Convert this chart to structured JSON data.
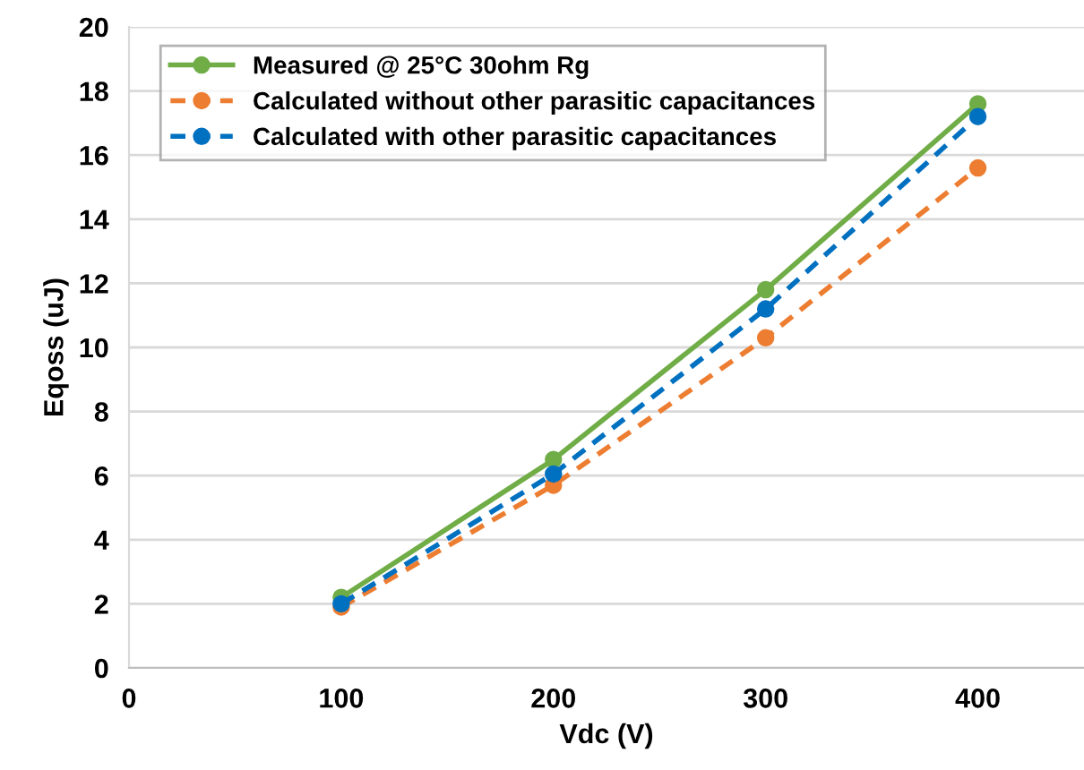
{
  "chart_data": {
    "type": "line",
    "xlabel": "Vdc (V)",
    "ylabel": "Eqoss (uJ)",
    "x": [
      100,
      200,
      300,
      400
    ],
    "series": [
      {
        "name": "Measured @ 25°C 30ohm Rg",
        "color": "#70ad47",
        "values": [
          2.2,
          6.5,
          11.8,
          17.6
        ],
        "line_style": "solid"
      },
      {
        "name": "Calculated without other parasitic capacitances",
        "color": "#ed7d31",
        "values": [
          1.9,
          5.7,
          10.3,
          15.6
        ],
        "line_style": "dashed"
      },
      {
        "name": "Calculated with other parasitic capacitances",
        "color": "#0070c0",
        "values": [
          2.0,
          6.05,
          11.2,
          17.2
        ],
        "line_style": "dashed"
      }
    ],
    "xlim": [
      0,
      450
    ],
    "xticks": [
      0,
      100,
      200,
      300,
      400
    ],
    "ylim": [
      0,
      20
    ],
    "yticks": [
      0,
      2,
      4,
      6,
      8,
      10,
      12,
      14,
      16,
      18,
      20
    ],
    "grid": "y",
    "legend": "top left",
    "marker": "circle"
  }
}
